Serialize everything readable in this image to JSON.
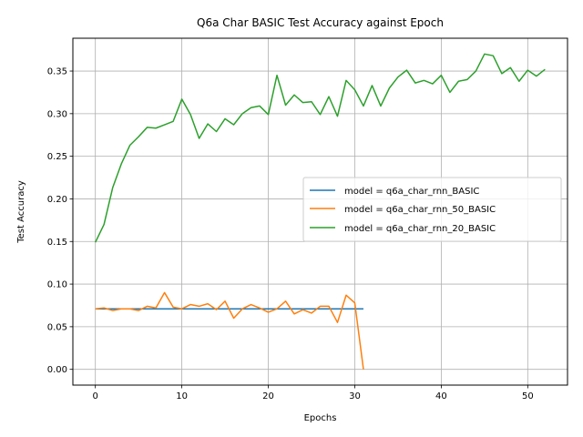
{
  "chart_data": {
    "type": "line",
    "title": "Q6a Char BASIC Test Accuracy against Epoch",
    "xlabel": "Epochs",
    "ylabel": "Test Accuracy",
    "xlim": [
      -2.6,
      54.6
    ],
    "ylim": [
      -0.0185,
      0.3885
    ],
    "xticks": [
      0,
      10,
      20,
      30,
      40,
      50
    ],
    "yticks": [
      0.0,
      0.05,
      0.1,
      0.15,
      0.2,
      0.25,
      0.3,
      0.35
    ],
    "ytick_labels": [
      "0.00",
      "0.05",
      "0.10",
      "0.15",
      "0.20",
      "0.25",
      "0.30",
      "0.35"
    ],
    "grid": true,
    "legend_position": "center-right",
    "series": [
      {
        "name": "model = q6a_char_rnn_BASIC",
        "color": "#1f77b4",
        "x": [
          0,
          31
        ],
        "y": [
          0.071,
          0.071
        ]
      },
      {
        "name": "model = q6a_char_rnn_50_BASIC",
        "color": "#ff7f0e",
        "x": [
          0,
          1,
          2,
          3,
          4,
          5,
          6,
          7,
          8,
          9,
          10,
          11,
          12,
          13,
          14,
          15,
          16,
          17,
          18,
          19,
          20,
          21,
          22,
          23,
          24,
          25,
          26,
          27,
          28,
          29,
          30,
          31
        ],
        "y": [
          0.071,
          0.072,
          0.069,
          0.071,
          0.071,
          0.069,
          0.074,
          0.072,
          0.09,
          0.073,
          0.071,
          0.076,
          0.074,
          0.077,
          0.07,
          0.08,
          0.06,
          0.071,
          0.076,
          0.072,
          0.067,
          0.071,
          0.08,
          0.065,
          0.07,
          0.066,
          0.074,
          0.074,
          0.055,
          0.087,
          0.078,
          0.0
        ]
      },
      {
        "name": "model = q6a_char_rnn_20_BASIC",
        "color": "#2ca02c",
        "x": [
          0,
          1,
          2,
          3,
          4,
          5,
          6,
          7,
          8,
          9,
          10,
          11,
          12,
          13,
          14,
          15,
          16,
          17,
          18,
          19,
          20,
          21,
          22,
          23,
          24,
          25,
          26,
          27,
          28,
          29,
          30,
          31,
          32,
          33,
          34,
          35,
          36,
          37,
          38,
          39,
          40,
          41,
          42,
          43,
          44,
          45,
          46,
          47,
          48,
          49,
          50,
          51,
          52
        ],
        "y": [
          0.149,
          0.17,
          0.213,
          0.241,
          0.263,
          0.273,
          0.284,
          0.283,
          0.287,
          0.291,
          0.317,
          0.299,
          0.271,
          0.288,
          0.279,
          0.294,
          0.287,
          0.3,
          0.307,
          0.309,
          0.299,
          0.345,
          0.31,
          0.322,
          0.313,
          0.314,
          0.299,
          0.32,
          0.297,
          0.339,
          0.328,
          0.309,
          0.333,
          0.309,
          0.33,
          0.343,
          0.351,
          0.336,
          0.339,
          0.335,
          0.345,
          0.325,
          0.338,
          0.34,
          0.35,
          0.37,
          0.368,
          0.347,
          0.354,
          0.338,
          0.351,
          0.344,
          0.352
        ]
      }
    ]
  }
}
